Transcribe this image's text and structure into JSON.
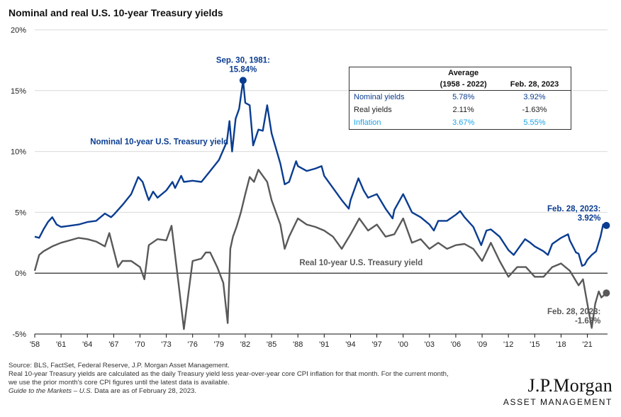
{
  "title": "Nominal and real U.S. 10-year Treasury yields",
  "colors": {
    "nominal": "#0a3d91",
    "real": "#595959",
    "inflation": "#1aa3e8",
    "axis": "#111111"
  },
  "chart_data": {
    "type": "line",
    "title": "Nominal and real U.S. 10-year Treasury yields",
    "xlabel": "",
    "ylabel": "",
    "xlim": [
      1958,
      2023.3
    ],
    "ylim": [
      -5,
      20
    ],
    "y_ticks": [
      -5,
      0,
      5,
      10,
      15,
      20
    ],
    "y_tick_labels": [
      "-5%",
      "0%",
      "5%",
      "10%",
      "15%",
      "20%"
    ],
    "x_ticks": [
      1958,
      1961,
      1964,
      1967,
      1970,
      1973,
      1976,
      1979,
      1982,
      1985,
      1988,
      1991,
      1994,
      1997,
      2000,
      2003,
      2006,
      2009,
      2012,
      2015,
      2018,
      2021
    ],
    "x_tick_labels": [
      "'58",
      "'61",
      "'64",
      "'67",
      "'70",
      "'73",
      "'76",
      "'79",
      "'82",
      "'85",
      "'88",
      "'91",
      "'94",
      "'97",
      "'00",
      "'03",
      "'06",
      "'09",
      "'12",
      "'15",
      "'18",
      "'21"
    ],
    "grid": "horizontal",
    "series": [
      {
        "name": "Nominal 10-year U.S. Treasury yield",
        "color": "#0a3d91",
        "x": [
          1958.0,
          1958.5,
          1959.0,
          1959.5,
          1960.0,
          1960.5,
          1961.0,
          1962.0,
          1963.0,
          1964.0,
          1965.0,
          1966.0,
          1966.7,
          1967.0,
          1968.0,
          1969.0,
          1969.8,
          1970.3,
          1970.8,
          1971.0,
          1971.5,
          1972.0,
          1973.0,
          1973.7,
          1974.0,
          1974.7,
          1975.0,
          1976.0,
          1977.0,
          1978.0,
          1979.0,
          1979.9,
          1980.2,
          1980.5,
          1980.9,
          1981.3,
          1981.75,
          1982.0,
          1982.5,
          1982.9,
          1983.5,
          1984.0,
          1984.5,
          1985.0,
          1986.0,
          1986.5,
          1987.0,
          1987.8,
          1988.0,
          1989.0,
          1990.0,
          1990.7,
          1991.0,
          1992.0,
          1993.0,
          1993.8,
          1994.0,
          1994.9,
          1995.5,
          1996.0,
          1997.0,
          1998.0,
          1998.8,
          1999.0,
          2000.0,
          2001.0,
          2002.0,
          2003.0,
          2003.5,
          2004.0,
          2005.0,
          2006.0,
          2006.5,
          2007.0,
          2008.0,
          2008.9,
          2009.5,
          2010.0,
          2011.0,
          2012.0,
          2012.6,
          2013.0,
          2013.9,
          2014.5,
          2015.0,
          2016.0,
          2016.5,
          2017.0,
          2018.0,
          2018.8,
          2019.0,
          2019.7,
          2020.0,
          2020.4,
          2020.7,
          2021.0,
          2021.5,
          2022.0,
          2022.5,
          2022.8,
          2023.17
        ],
        "y": [
          3.0,
          2.9,
          3.6,
          4.2,
          4.6,
          4.0,
          3.8,
          3.9,
          4.0,
          4.2,
          4.3,
          4.9,
          4.6,
          4.8,
          5.6,
          6.5,
          7.9,
          7.5,
          6.4,
          6.0,
          6.7,
          6.2,
          6.8,
          7.5,
          7.0,
          8.0,
          7.5,
          7.6,
          7.5,
          8.4,
          9.3,
          10.8,
          12.5,
          10.0,
          12.7,
          13.5,
          15.84,
          14.0,
          13.8,
          10.5,
          11.8,
          11.7,
          13.8,
          11.5,
          9.0,
          7.3,
          7.5,
          9.2,
          8.8,
          8.4,
          8.6,
          8.8,
          8.0,
          7.0,
          6.0,
          5.3,
          6.0,
          7.8,
          6.8,
          6.2,
          6.5,
          5.3,
          4.5,
          5.2,
          6.5,
          5.0,
          4.6,
          4.0,
          3.5,
          4.3,
          4.3,
          4.8,
          5.1,
          4.6,
          3.8,
          2.3,
          3.5,
          3.6,
          3.0,
          1.9,
          1.5,
          1.9,
          2.8,
          2.5,
          2.2,
          1.8,
          1.5,
          2.4,
          2.9,
          3.2,
          2.7,
          1.7,
          1.6,
          0.6,
          0.7,
          1.1,
          1.5,
          1.8,
          3.0,
          4.0,
          3.92
        ]
      },
      {
        "name": "Real 10-year U.S. Treasury yield",
        "color": "#595959",
        "x": [
          1958.0,
          1958.5,
          1959.0,
          1960.0,
          1961.0,
          1962.0,
          1963.0,
          1964.0,
          1965.0,
          1966.0,
          1966.5,
          1967.5,
          1968.0,
          1969.0,
          1970.0,
          1970.5,
          1971.0,
          1972.0,
          1973.0,
          1973.6,
          1974.5,
          1975.0,
          1975.5,
          1976.0,
          1977.0,
          1977.5,
          1978.0,
          1978.8,
          1979.5,
          1980.0,
          1980.3,
          1980.6,
          1981.0,
          1981.5,
          1982.0,
          1982.5,
          1983.0,
          1983.5,
          1984.0,
          1984.5,
          1985.0,
          1986.0,
          1986.5,
          1987.0,
          1988.0,
          1989.0,
          1990.0,
          1991.0,
          1992.0,
          1993.0,
          1994.0,
          1995.0,
          1996.0,
          1997.0,
          1998.0,
          1999.0,
          2000.0,
          2001.0,
          2002.0,
          2003.0,
          2004.0,
          2005.0,
          2006.0,
          2007.0,
          2008.0,
          2009.0,
          2010.0,
          2011.0,
          2012.0,
          2013.0,
          2014.0,
          2015.0,
          2016.0,
          2017.0,
          2018.0,
          2019.0,
          2020.0,
          2020.5,
          2021.0,
          2021.5,
          2021.9,
          2022.3,
          2022.6,
          2023.17
        ],
        "y": [
          0.2,
          1.5,
          1.8,
          2.2,
          2.5,
          2.7,
          2.9,
          2.8,
          2.6,
          2.2,
          3.3,
          0.5,
          1.0,
          1.0,
          0.5,
          -0.5,
          2.3,
          2.8,
          2.7,
          3.9,
          -1.5,
          -4.6,
          -1.8,
          1.0,
          1.2,
          1.7,
          1.7,
          0.5,
          -0.8,
          -4.1,
          2.0,
          3.0,
          3.8,
          5.0,
          6.5,
          7.9,
          7.5,
          8.5,
          8.0,
          7.5,
          6.0,
          4.0,
          2.0,
          3.0,
          4.5,
          4.0,
          3.8,
          3.5,
          3.0,
          2.0,
          3.2,
          4.5,
          3.5,
          4.0,
          3.0,
          3.2,
          4.5,
          2.5,
          2.8,
          2.0,
          2.5,
          2.0,
          2.3,
          2.4,
          2.0,
          1.0,
          2.5,
          1.0,
          -0.3,
          0.5,
          0.5,
          -0.3,
          -0.3,
          0.5,
          0.8,
          0.2,
          -1.0,
          -0.5,
          -2.5,
          -4.5,
          -2.5,
          -1.5,
          -2.0,
          -1.63
        ]
      }
    ],
    "annotations": [
      {
        "text": [
          "Sep. 30, 1981:",
          "15.84%"
        ],
        "x": 1981.75,
        "y": 15.84,
        "series": "nominal"
      },
      {
        "text": [
          "Feb. 28, 2023:",
          "3.92%"
        ],
        "x": 2023.17,
        "y": 3.92,
        "series": "nominal"
      },
      {
        "text": [
          "Feb. 28, 2023:",
          "-1.63%"
        ],
        "x": 2023.17,
        "y": -1.63,
        "series": "real"
      }
    ]
  },
  "series_labels": {
    "nominal": "Nominal 10-year U.S. Treasury yield",
    "real": "Real 10-year U.S. Treasury yield"
  },
  "table": {
    "col1_line1": "Average",
    "col1_line2": "(1958 - 2022)",
    "col2": "Feb. 28, 2023",
    "rows": [
      {
        "label": "Nominal yields",
        "avg": "5.78%",
        "current": "3.92%",
        "color": "#0a3d91"
      },
      {
        "label": "Real yields",
        "avg": "2.11%",
        "current": "-1.63%",
        "color": "#222222"
      },
      {
        "label": "Inflation",
        "avg": "3.67%",
        "current": "5.55%",
        "color": "#1aa3e8"
      }
    ]
  },
  "footnotes": [
    "Source: BLS, FactSet, Federal Reserve, J.P. Morgan Asset Management.",
    "Real 10-year Treasury yields are calculated as the daily Treasury yield less year-over-year core CPI inflation for that month. For the current month,",
    "we use the prior month's core CPI figures until the latest data is available."
  ],
  "footnote_guide": {
    "italic": "Guide to the Markets – U.S.",
    "rest": " Data are as of February 28, 2023."
  },
  "logo": {
    "name": "J.P.Morgan",
    "sub": "ASSET MANAGEMENT"
  }
}
